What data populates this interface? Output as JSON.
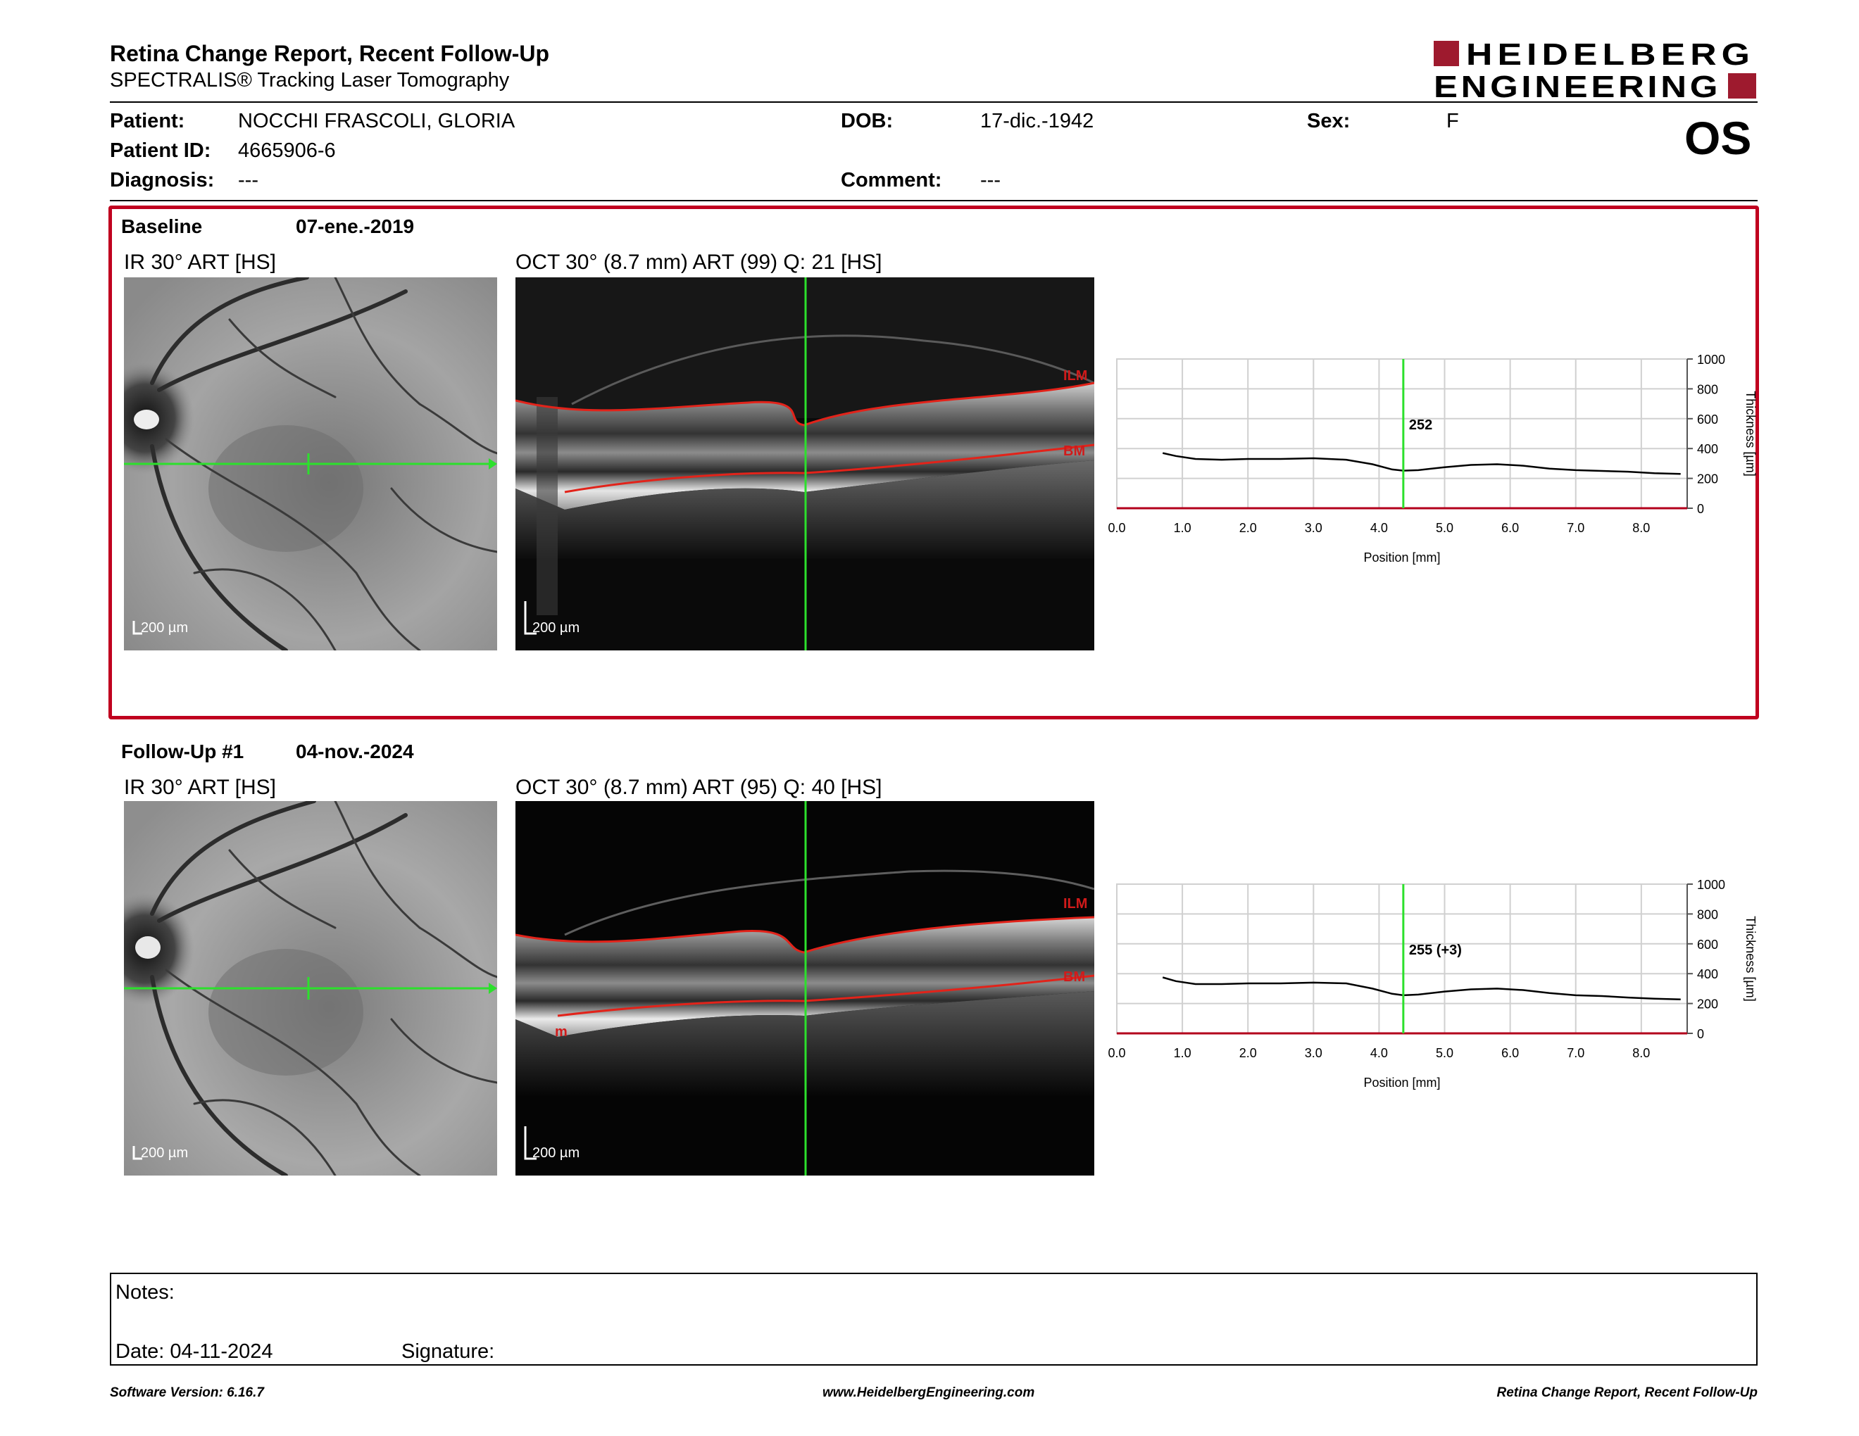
{
  "report": {
    "title": "Retina Change Report, Recent Follow-Up",
    "subtitle": "SPECTRALIS® Tracking Laser Tomography"
  },
  "brand": {
    "line1": "HEIDELBERG",
    "line2": "ENGINEERING",
    "color": "#9e1a2e"
  },
  "patient": {
    "patient_label": "Patient:",
    "patient_value": "NOCCHI FRASCOLI, GLORIA",
    "id_label": "Patient ID:",
    "id_value": "4665906-6",
    "diagnosis_label": "Diagnosis:",
    "diagnosis_value": "---",
    "dob_label": "DOB:",
    "dob_value": "17-dic.-1942",
    "comment_label": "Comment:",
    "comment_value": "---",
    "sex_label": "Sex:",
    "sex_value": "F",
    "eye": "OS"
  },
  "baseline": {
    "label": "Baseline",
    "date": "07-ene.-2019",
    "ir_title": "IR 30° ART [HS]",
    "oct_title": "OCT 30° (8.7 mm) ART (99) Q: 21 [HS]",
    "scale_label": "200 µm",
    "ilm_label": "ILM",
    "bm_label": "BM"
  },
  "followup": {
    "label": "Follow-Up #1",
    "date": "04-nov.-2024",
    "ir_title": "IR 30° ART [HS]",
    "oct_title": "OCT 30° (8.7 mm) ART (95) Q: 40 [HS]",
    "scale_label": "200 µm",
    "ilm_label": "ILM",
    "bm_label": "BM",
    "m_label": "m"
  },
  "chart_data": [
    {
      "type": "line",
      "name": "baseline-thickness",
      "xlabel": "Position [mm]",
      "ylabel": "Thickness [µm]",
      "xlim": [
        0,
        8.7
      ],
      "ylim": [
        0,
        1000
      ],
      "x_ticks": [
        "0.0",
        "1.0",
        "2.0",
        "3.0",
        "4.0",
        "5.0",
        "6.0",
        "7.0",
        "8.0"
      ],
      "y_ticks": [
        "0",
        "200",
        "400",
        "600",
        "800",
        "1000"
      ],
      "grid": true,
      "cursor_x": 4.37,
      "cursor_label": "252",
      "x": [
        0.7,
        0.9,
        1.2,
        1.6,
        2.0,
        2.5,
        3.0,
        3.5,
        3.9,
        4.2,
        4.37,
        4.6,
        5.0,
        5.4,
        5.8,
        6.2,
        6.6,
        7.0,
        7.4,
        7.8,
        8.2,
        8.6
      ],
      "values": [
        370,
        350,
        330,
        325,
        330,
        330,
        335,
        325,
        295,
        260,
        252,
        255,
        275,
        290,
        295,
        285,
        265,
        255,
        250,
        245,
        235,
        230
      ]
    },
    {
      "type": "line",
      "name": "followup-thickness",
      "xlabel": "Position [mm]",
      "ylabel": "Thickness [µm]",
      "xlim": [
        0,
        8.7
      ],
      "ylim": [
        0,
        1000
      ],
      "x_ticks": [
        "0.0",
        "1.0",
        "2.0",
        "3.0",
        "4.0",
        "5.0",
        "6.0",
        "7.0",
        "8.0"
      ],
      "y_ticks": [
        "0",
        "200",
        "400",
        "600",
        "800",
        "1000"
      ],
      "grid": true,
      "cursor_x": 4.37,
      "cursor_label": "255 (+3)",
      "x": [
        0.7,
        0.9,
        1.2,
        1.6,
        2.0,
        2.5,
        3.0,
        3.5,
        3.9,
        4.2,
        4.37,
        4.6,
        5.0,
        5.4,
        5.8,
        6.2,
        6.6,
        7.0,
        7.4,
        7.8,
        8.2,
        8.6
      ],
      "values": [
        375,
        350,
        330,
        330,
        335,
        335,
        340,
        335,
        300,
        265,
        255,
        260,
        280,
        295,
        300,
        290,
        270,
        255,
        250,
        240,
        232,
        228
      ]
    }
  ],
  "notes": {
    "notes_label": "Notes:",
    "date_label": "Date: 04-11-2024",
    "signature_label": "Signature:"
  },
  "footer": {
    "software": "Software Version: 6.16.7",
    "website": "www.HeidelbergEngineering.com",
    "report_name": "Retina Change Report, Recent Follow-Up"
  }
}
